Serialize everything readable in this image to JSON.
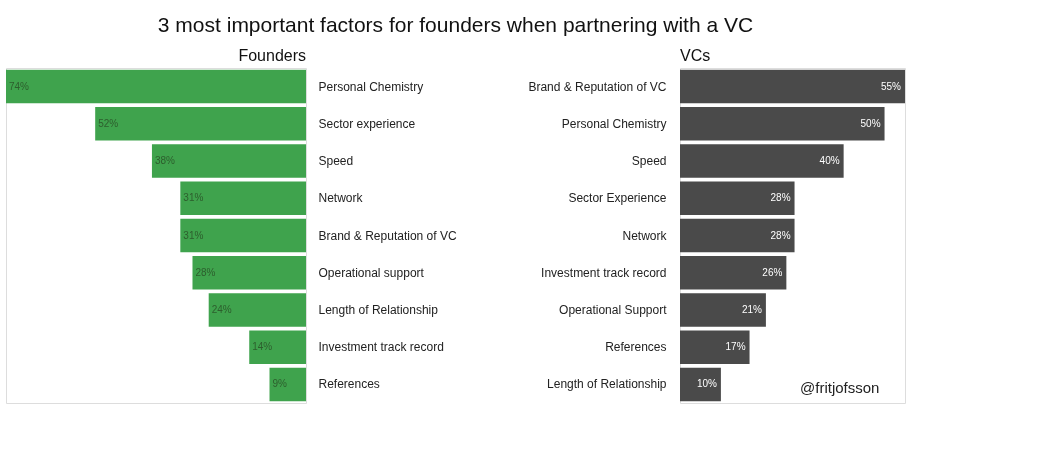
{
  "chart_data": [
    {
      "type": "bar",
      "orientation": "horizontal",
      "title": "Founders",
      "color": "#3fa34d",
      "categories": [
        "Personal Chemistry",
        "Sector experience",
        "Speed",
        "Network",
        "Brand & Reputation of VC",
        "Operational support",
        "Length of Relationship",
        "Investment track record",
        "References"
      ],
      "values": [
        74,
        52,
        38,
        31,
        31,
        28,
        24,
        14,
        9
      ],
      "value_labels": [
        "74%",
        "52%",
        "38%",
        "31%",
        "31%",
        "28%",
        "24%",
        "14%",
        "9%"
      ],
      "annotations": [
        "3 most important factors for founders when partnering with a VC"
      ]
    },
    {
      "type": "bar",
      "orientation": "horizontal",
      "title": "VCs",
      "color": "#4a4a4a",
      "categories": [
        "Brand & Reputation of VC",
        "Personal Chemistry",
        "Speed",
        "Sector Experience",
        "Network",
        "Investment track record",
        "Operational Support",
        "References",
        "Length of Relationship"
      ],
      "values": [
        55,
        50,
        40,
        28,
        28,
        26,
        21,
        17,
        10
      ],
      "value_labels": [
        "55%",
        "50%",
        "40%",
        "28%",
        "28%",
        "26%",
        "21%",
        "17%",
        "10%"
      ],
      "annotations": [
        "@fritjofsson"
      ]
    }
  ]
}
